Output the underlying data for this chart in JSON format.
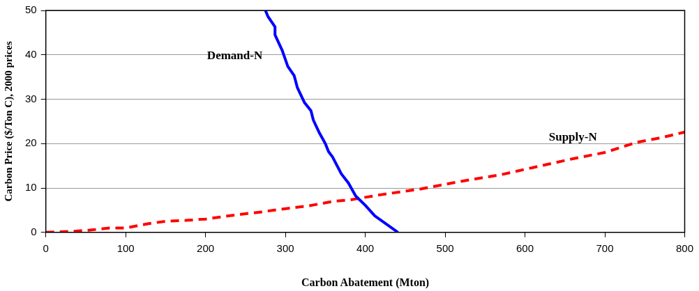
{
  "chart_data": {
    "type": "line",
    "xlabel": "Carbon Abatement (Mton)",
    "ylabel": "Carbon Price ($/Ton C), 2000 prices",
    "xlim": [
      0,
      800
    ],
    "xticks": [
      0,
      100,
      200,
      300,
      400,
      500,
      600,
      700,
      800
    ],
    "ylim": [
      0,
      50
    ],
    "yticks": [
      0,
      10,
      20,
      30,
      40,
      50
    ],
    "grid": "y",
    "legend": false,
    "marker": "none",
    "series": [
      {
        "name": "Demand-N",
        "color": "#0000ff",
        "line_style": "solid",
        "x": [
          275,
          278,
          287,
          287,
          296,
          303,
          311,
          315,
          324,
          332,
          335,
          342,
          350,
          354,
          359,
          370,
          379,
          388,
          400,
          412,
          427,
          441
        ],
        "values": [
          50,
          48.7,
          46.3,
          44.5,
          41,
          37.4,
          35.3,
          32.6,
          29.2,
          27.4,
          25.3,
          22.6,
          20,
          18.2,
          17,
          13.2,
          11.1,
          8.2,
          6.1,
          3.7,
          1.8,
          0
        ]
      },
      {
        "name": "Supply-N",
        "color": "#ff0000",
        "line_style": "dashed",
        "x": [
          0,
          30,
          55,
          80,
          100,
          130,
          150,
          175,
          200,
          240,
          270,
          285,
          330,
          360,
          380,
          420,
          470,
          520,
          570,
          620,
          660,
          700,
          740,
          770,
          800
        ],
        "values": [
          0,
          0.2,
          0.5,
          1,
          1,
          2,
          2.5,
          2.7,
          3,
          4,
          4.6,
          5,
          6,
          7,
          7.3,
          8.5,
          9.8,
          11.5,
          13,
          15,
          16.6,
          18,
          20.3,
          21.3,
          22.6
        ]
      }
    ]
  }
}
